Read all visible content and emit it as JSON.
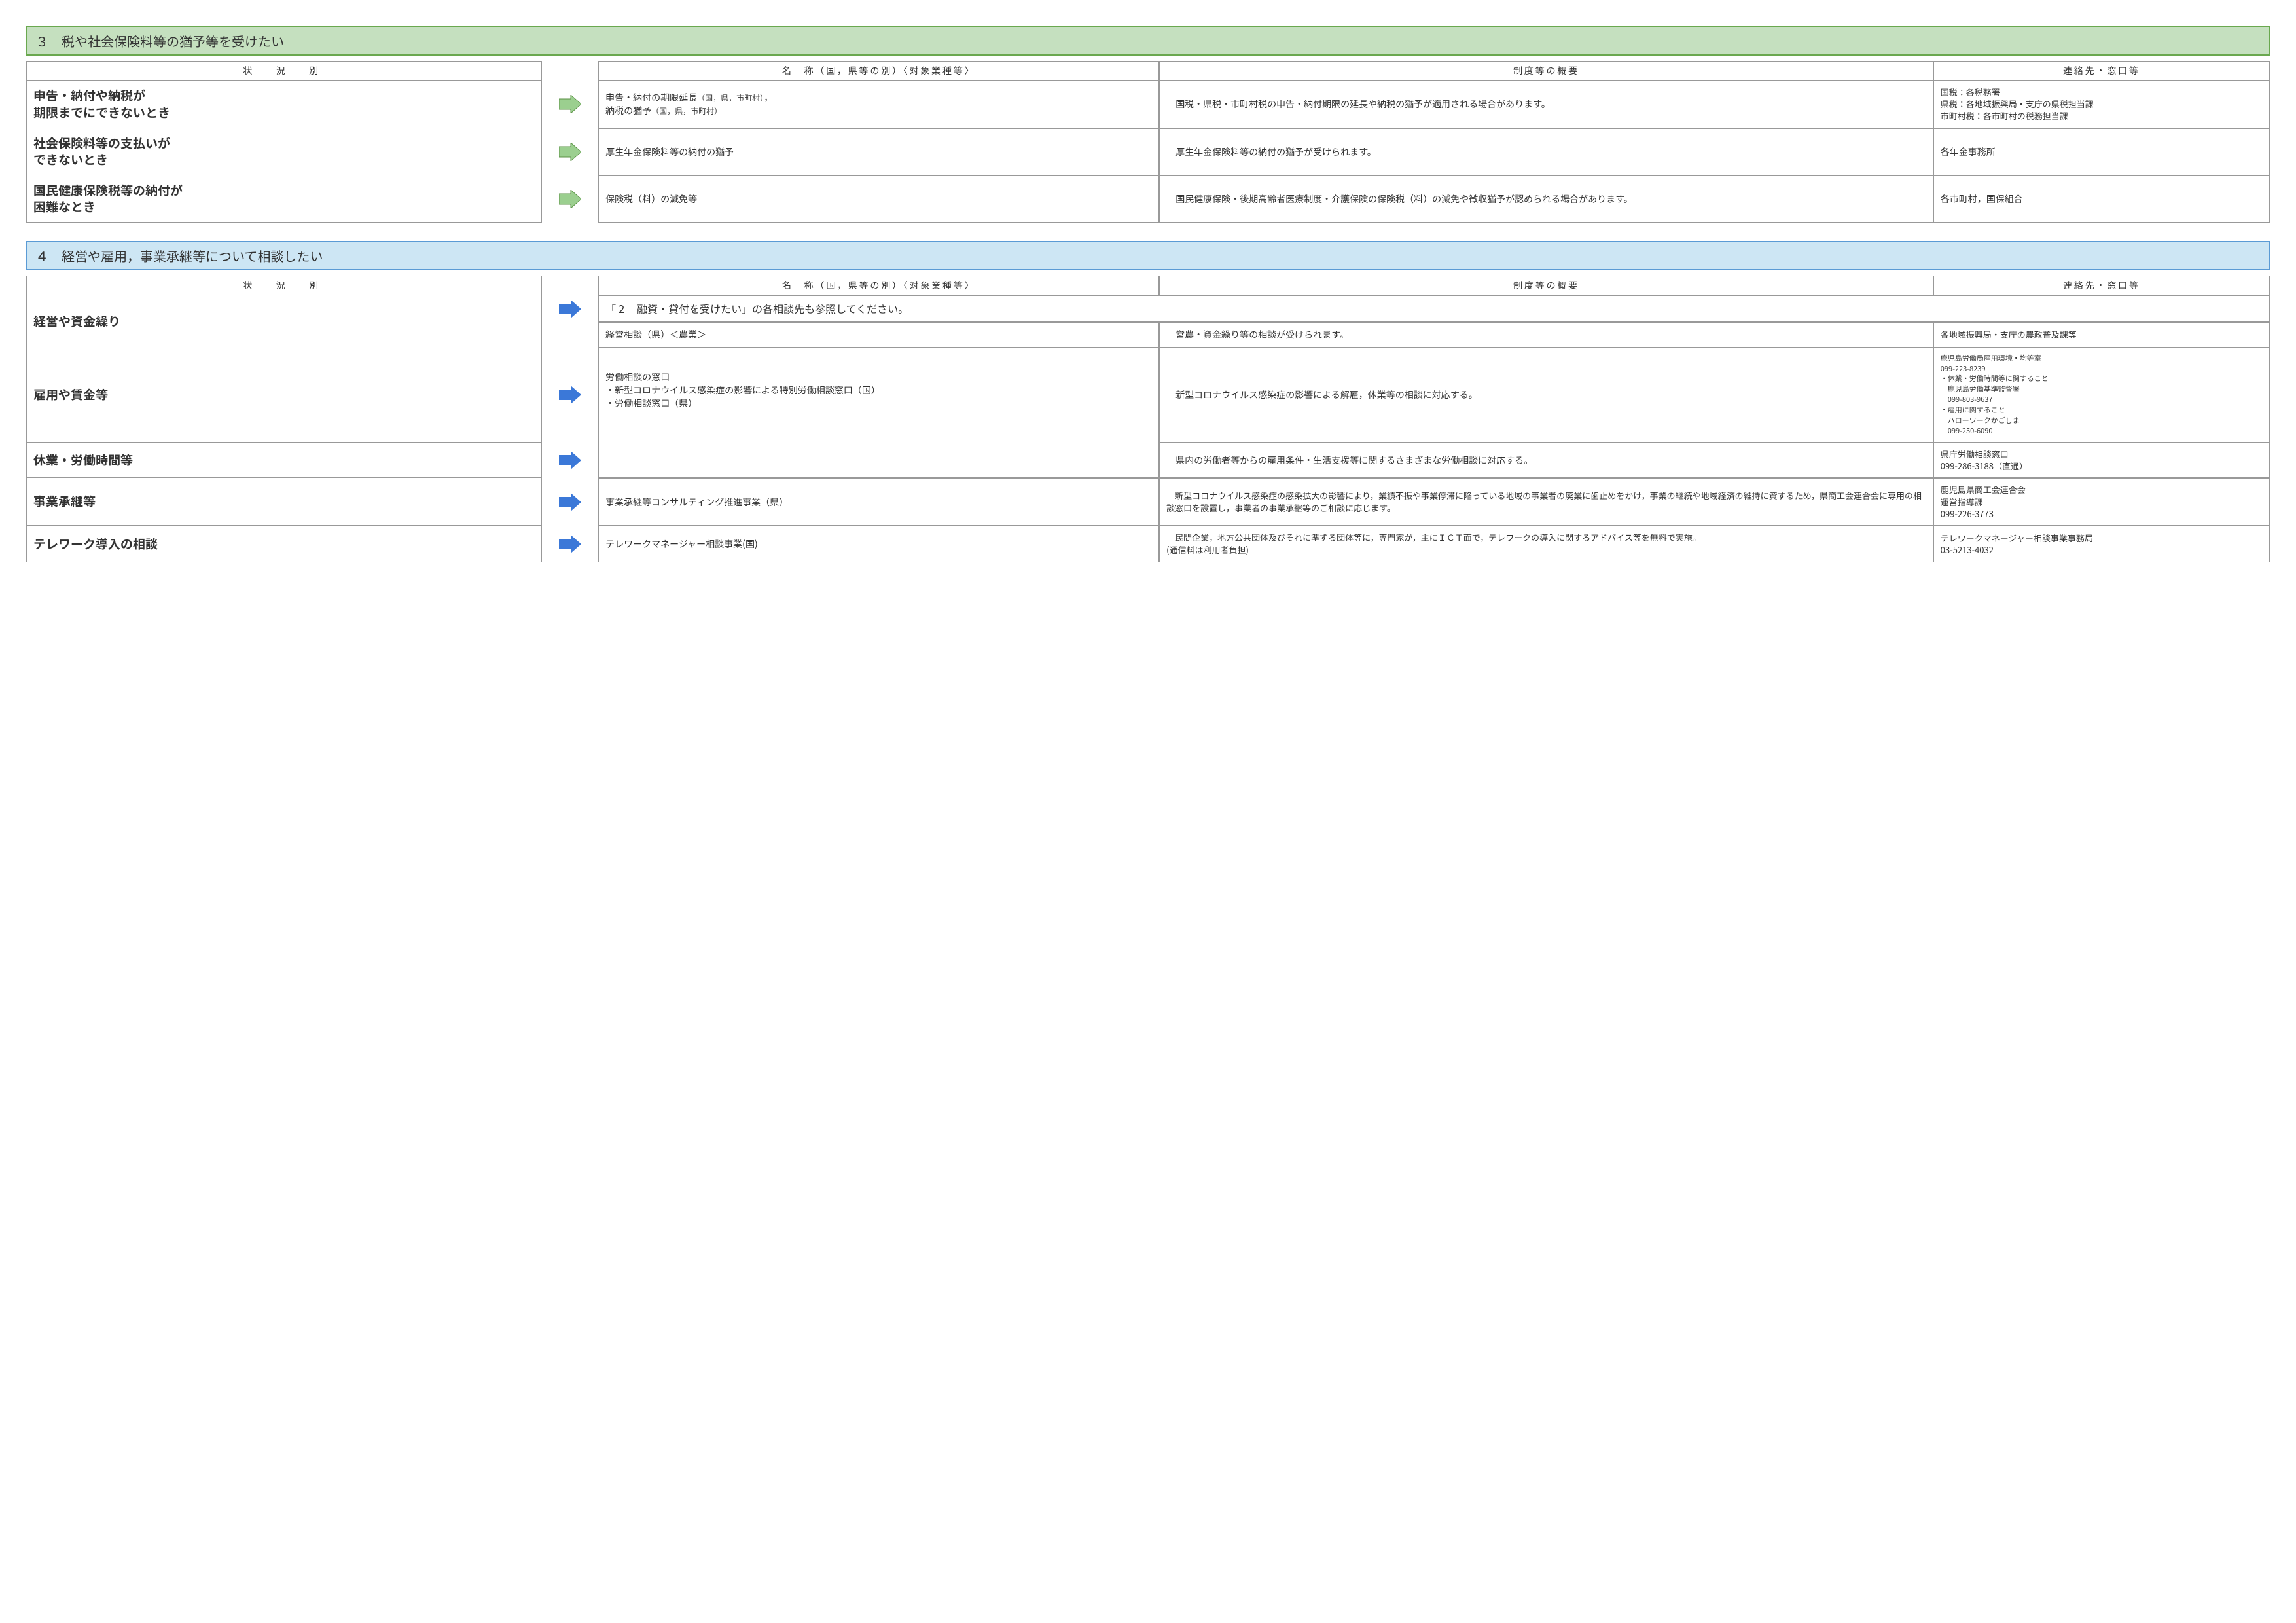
{
  "colors": {
    "green_header_bg": "#c5e0bf",
    "green_border": "#6aa84f",
    "green_arrow_fill": "#9bcf8f",
    "green_arrow_stroke": "#5b9245",
    "blue_header_bg": "#cde6f4",
    "blue_border": "#5b9bd5",
    "blue_arrow_fill": "#3b78d8",
    "cell_border": "#999999",
    "text": "#333333"
  },
  "sections": [
    {
      "id": "s3",
      "color": "green",
      "title": "３　税や社会保険料等の猶予等を受けたい",
      "headers": {
        "situation": "状　況　別",
        "name": "名　称（国，県等の別）〈対象業種等〉",
        "summary": "制度等の概要",
        "contact": "連絡先・窓口等"
      },
      "rows": [
        {
          "situation": "申告・納付や納税が\n期限までにできないとき",
          "name_html": "申告・納付の期限延長<span class='sp-sm'>（国，県，市町村）</span>，<br>納税の猶予<span class='sp-sm'>（国，県，市町村）</span>",
          "summary": "　国税・県税・市町村税の申告・納付期限の延長や納税の猶予が適用される場合があります。",
          "contact": "国税：各税務署\n県税：各地域振興局・支庁の県税担当課\n市町村税：各市町村の税務担当課"
        },
        {
          "situation": "社会保険料等の支払いが\nできないとき",
          "name_html": "厚生年金保険料等の納付の猶予",
          "summary": "　厚生年金保険料等の納付の猶予が受けられます。",
          "contact": "各年金事務所"
        },
        {
          "situation": "国民健康保険税等の納付が\n困難なとき",
          "name_html": "保険税（料）の減免等",
          "summary": "　国民健康保険・後期高齢者医療制度・介護保険の保険税（料）の減免や徴収猶予が認められる場合があります。",
          "contact": "各市町村，国保組合"
        }
      ]
    },
    {
      "id": "s4",
      "color": "blue",
      "title": "４　経営や雇用，事業承継等について相談したい",
      "headers": {
        "situation": "状　況　別",
        "name": "名　称（国，県等の別）〈対象業種等〉",
        "summary": "制度等の概要",
        "contact": "連絡先・窓口等"
      },
      "rows": [
        {
          "situation": "経営や資金繰り",
          "span_note": "「２　融資・貸付を受けたい」の各相談先も参照してください。",
          "name_html": "経営相談（県）＜農業＞",
          "summary": "　営農・資金繰り等の相談が受けられます。",
          "contact": "各地域振興局・支庁の農政普及課等"
        },
        {
          "situation": "雇用や賃金等",
          "name_html": "<span class='nameblock'>労働相談の窓口</span><span class='sub-line'>・新型コロナウイルス感染症の影響による特別労働相談窓口（国）</span><span class='sub-line'>・労働相談窓口（県）</span>",
          "summary": "　新型コロナウイルス感染症の影響による解雇，休業等の相談に対応する。",
          "contact": "鹿児島労働局雇用環境・均等室\n099-223-8239\n・休業・労働時間等に関すること\n　鹿児島労働基準監督署\n　099-803-9637\n・雇用に関すること\n　ハローワークかごしま\n　099-250-6090"
        },
        {
          "situation": "休業・労働時間等",
          "name_html": "",
          "summary": "　県内の労働者等からの雇用条件・生活支援等に関するさまざまな労働相談に対応する。",
          "contact": "県庁労働相談窓口\n099-286-3188（直通）"
        },
        {
          "situation": "事業承継等",
          "name_html": "事業承継等コンサルティング推進事業（県）",
          "summary": "　新型コロナウイルス感染症の感染拡大の影響により，業績不振や事業停滞に陥っている地域の事業者の廃業に歯止めをかけ，事業の継続や地域経済の維持に資するため，県商工会連合会に専用の相談窓口を設置し，事業者の事業承継等のご相談に応じます。",
          "contact": "鹿児島県商工会連合会\n運営指導課\n099-226-3773"
        },
        {
          "situation": "テレワーク導入の相談",
          "name_html": "テレワークマネージャー相談事業(国)",
          "summary": "　民間企業，地方公共団体及びそれに準ずる団体等に，専門家が，主にＩＣＴ面で，テレワークの導入に関するアドバイス等を無料で実施。\n(通信料は利用者負担)",
          "contact": "テレワークマネージャー相談事業事務局\n03-5213-4032"
        }
      ]
    }
  ]
}
